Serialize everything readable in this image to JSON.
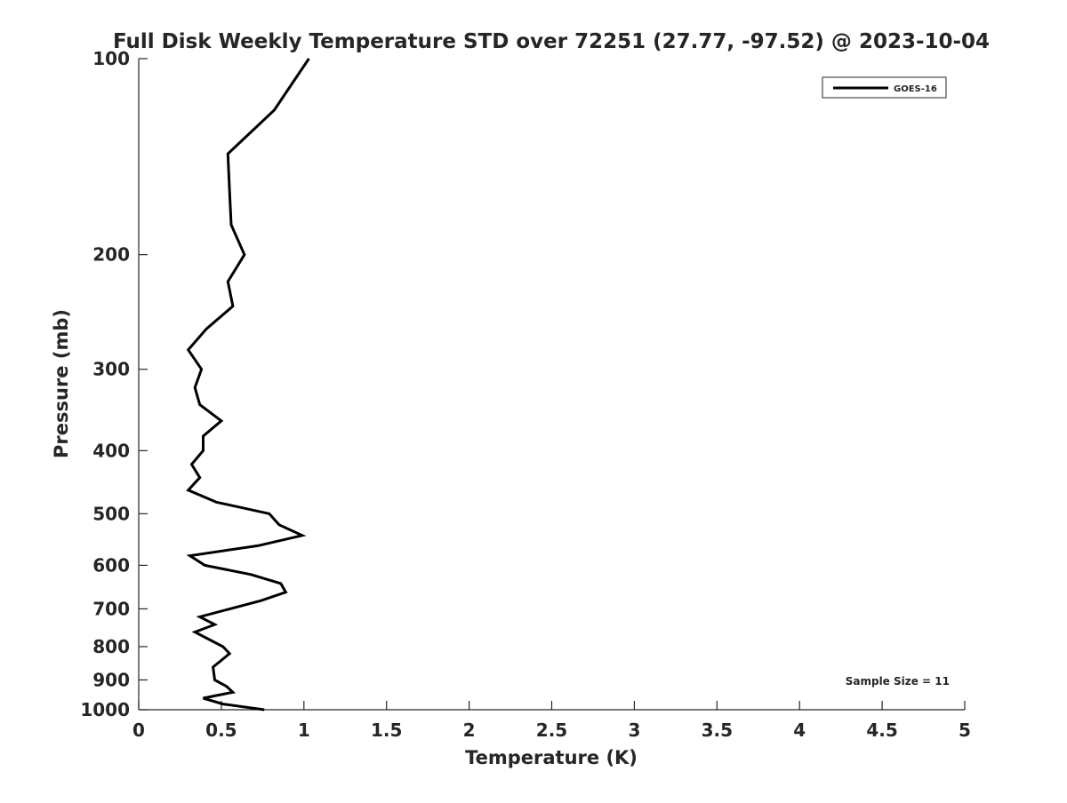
{
  "chart_data": {
    "type": "line",
    "title": "Full Disk Weekly Temperature STD over 72251 (27.77, -97.52) @ 2023-10-04",
    "xlabel": "Temperature (K)",
    "ylabel": "Pressure (mb)",
    "xlim": [
      0,
      5
    ],
    "ylim": [
      100,
      1000
    ],
    "yscale": "log",
    "yreversed": true,
    "grid": false,
    "xticks": [
      0,
      0.5,
      1,
      1.5,
      2,
      2.5,
      3,
      3.5,
      4,
      4.5,
      5
    ],
    "xtick_labels": [
      "0",
      "0.5",
      "1",
      "1.5",
      "2",
      "2.5",
      "3",
      "3.5",
      "4",
      "4.5",
      "5"
    ],
    "yticks": [
      100,
      200,
      300,
      400,
      500,
      600,
      700,
      800,
      900,
      1000
    ],
    "ytick_labels": [
      "100",
      "200",
      "300",
      "400",
      "500",
      "600",
      "700",
      "800",
      "900",
      "1000"
    ],
    "legend": {
      "placement": "top-right",
      "entries": [
        "GOES-16"
      ]
    },
    "annotation": "Sample Size = 11",
    "series": [
      {
        "name": "GOES-16",
        "color": "#000000",
        "temperature": [
          1.03,
          0.82,
          0.54,
          0.55,
          0.56,
          0.64,
          0.54,
          0.57,
          0.41,
          0.3,
          0.38,
          0.34,
          0.37,
          0.5,
          0.39,
          0.39,
          0.32,
          0.37,
          0.3,
          0.47,
          0.79,
          0.85,
          0.99,
          0.72,
          0.31,
          0.4,
          0.68,
          0.86,
          0.89,
          0.74,
          0.37,
          0.46,
          0.34,
          0.51,
          0.55,
          0.45,
          0.46,
          0.53,
          0.57,
          0.39,
          0.51,
          0.76
        ],
        "pressure": [
          100,
          120,
          140,
          160,
          180,
          200,
          220,
          240,
          260,
          280,
          300,
          320,
          340,
          360,
          380,
          400,
          420,
          440,
          460,
          480,
          500,
          520,
          540,
          560,
          580,
          600,
          620,
          640,
          660,
          680,
          720,
          740,
          760,
          800,
          820,
          860,
          900,
          920,
          940,
          960,
          980,
          1000
        ]
      }
    ]
  }
}
